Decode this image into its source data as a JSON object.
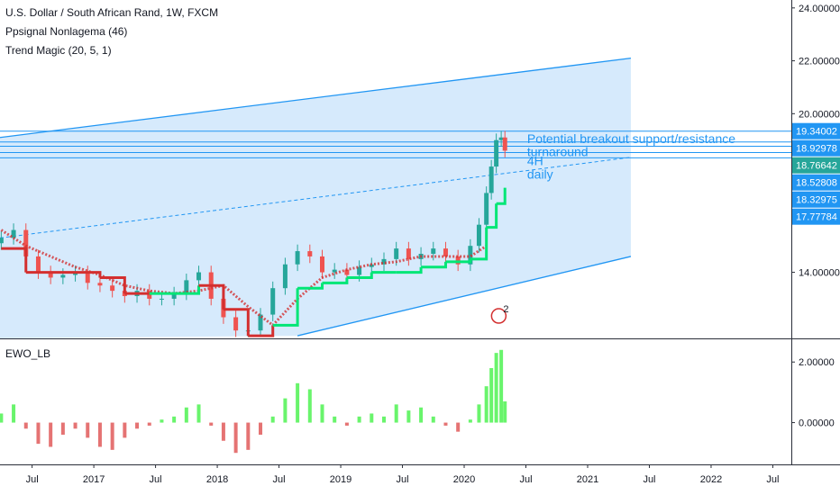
{
  "header": {
    "symbol_line": "U.S. Dollar / South African Rand, 1W, FXCM",
    "indicator1": "Ppsignal Nonlagema (46)",
    "indicator2": "Trend Magic (20, 5, 1)"
  },
  "lower_pane": {
    "title": "EWO_LB"
  },
  "colors": {
    "accent": "#2196f3",
    "channel_fill": "#cfe6fb",
    "up": "#26a69a",
    "down": "#ef5350",
    "trend_up": "#00e676",
    "trend_down": "#d32f2f",
    "ewo_up": "#69f46c",
    "ewo_down": "#e57373"
  },
  "chart_data": [
    {
      "type": "line",
      "description_type": "candlestick",
      "price_axis": {
        "ticks": [
          {
            "value": 24,
            "label": "24.00000"
          },
          {
            "value": 22,
            "label": "22.00000"
          },
          {
            "value": 20,
            "label": "20.00000"
          },
          {
            "value": 14,
            "label": "14.00000"
          }
        ],
        "badges": [
          {
            "label": "19.34002",
            "value": 19.34,
            "color": "#2196f3"
          },
          {
            "label": "18.92978",
            "value": 18.93,
            "color": "#2196f3"
          },
          {
            "label": "18.76642",
            "value": 18.766,
            "color": "#26a69a"
          },
          {
            "label": "18.52808",
            "value": 18.528,
            "color": "#2196f3"
          },
          {
            "label": "18.32975",
            "value": 18.33,
            "color": "#2196f3"
          },
          {
            "label": "17.77784",
            "value": 17.778,
            "color": "#2196f3"
          }
        ],
        "ylim": [
          11.5,
          24.3
        ]
      },
      "time_axis": {
        "labels": [
          "Jul",
          "2017",
          "Jul",
          "2018",
          "Jul",
          "2019",
          "Jul",
          "2020",
          "Jul",
          "2021",
          "Jul",
          "2022",
          "Jul"
        ],
        "positions_years": [
          2016.5,
          2017.0,
          2017.5,
          2018.0,
          2018.5,
          2019.0,
          2019.5,
          2020.0,
          2020.5,
          2021.0,
          2021.5,
          2022.0,
          2022.5
        ],
        "xlim": [
          2016.24,
          2022.65
        ]
      },
      "price_series": {
        "x": [
          2016.25,
          2016.35,
          2016.45,
          2016.55,
          2016.65,
          2016.75,
          2016.85,
          2016.95,
          2017.05,
          2017.15,
          2017.25,
          2017.35,
          2017.45,
          2017.55,
          2017.65,
          2017.75,
          2017.85,
          2017.95,
          2018.05,
          2018.15,
          2018.25,
          2018.35,
          2018.45,
          2018.55,
          2018.65,
          2018.75,
          2018.85,
          2018.95,
          2019.05,
          2019.15,
          2019.25,
          2019.35,
          2019.45,
          2019.55,
          2019.65,
          2019.75,
          2019.85,
          2019.95,
          2020.05,
          2020.12,
          2020.18,
          2020.22,
          2020.26,
          2020.3,
          2020.33
        ],
        "close": [
          15.3,
          15.6,
          14.6,
          14.0,
          13.8,
          13.9,
          14.0,
          13.6,
          13.5,
          13.3,
          13.1,
          13.3,
          13.0,
          13.0,
          13.2,
          13.7,
          14.0,
          13.0,
          12.3,
          11.8,
          11.8,
          12.4,
          13.4,
          14.3,
          14.8,
          14.6,
          14.0,
          14.1,
          13.9,
          14.2,
          14.3,
          14.5,
          14.9,
          14.5,
          14.7,
          14.9,
          14.6,
          14.3,
          15.0,
          15.8,
          17.0,
          18.0,
          19.0,
          19.1,
          18.6
        ]
      },
      "trend_magic": {
        "x": [
          2016.25,
          2016.45,
          2016.65,
          2016.85,
          2017.05,
          2017.25,
          2017.45,
          2017.65,
          2017.85,
          2018.05,
          2018.25,
          2018.45,
          2018.65,
          2018.85,
          2019.05,
          2019.25,
          2019.45,
          2019.65,
          2019.85,
          2020.05,
          2020.18,
          2020.26,
          2020.33
        ],
        "value": [
          14.9,
          14.0,
          14.0,
          14.0,
          13.8,
          13.2,
          13.2,
          13.2,
          13.5,
          12.6,
          11.6,
          12.0,
          13.4,
          13.6,
          13.8,
          14.0,
          14.0,
          14.2,
          14.4,
          14.5,
          15.7,
          16.6,
          17.2
        ],
        "trend": [
          "down",
          "down",
          "down",
          "down",
          "down",
          "down",
          "up",
          "up",
          "down",
          "down",
          "down",
          "up",
          "up",
          "up",
          "up",
          "up",
          "up",
          "up",
          "up",
          "up",
          "up",
          "up",
          "up"
        ]
      },
      "nonlag_ema": {
        "x": [
          2016.25,
          2016.45,
          2016.65,
          2016.85,
          2017.05,
          2017.25,
          2017.45,
          2017.65,
          2017.85,
          2018.05,
          2018.25,
          2018.45,
          2018.65,
          2018.85,
          2019.05,
          2019.25,
          2019.45,
          2019.65,
          2019.85,
          2020.05,
          2020.18
        ],
        "value": [
          15.6,
          15.0,
          14.6,
          14.2,
          13.9,
          13.5,
          13.3,
          13.2,
          13.3,
          13.5,
          12.7,
          12.0,
          13.0,
          13.8,
          14.1,
          14.3,
          14.4,
          14.6,
          14.6,
          14.6,
          15.0
        ]
      },
      "channel": {
        "upper": {
          "x": [
            2016.24,
            2021.35
          ],
          "y": [
            19.1,
            22.1
          ]
        },
        "lower": {
          "x": [
            2018.65,
            2021.35
          ],
          "y": [
            11.6,
            14.6
          ]
        },
        "mid": {
          "x": [
            2016.24,
            2021.35
          ],
          "y": [
            15.3,
            18.35
          ]
        }
      },
      "horizontal_levels": [
        19.34,
        18.93,
        18.766,
        18.528,
        18.33
      ],
      "annotations": [
        {
          "text": "Potential breakout support/resistance",
          "x": 2020.51,
          "y": 18.89
        },
        {
          "text": "turnaround",
          "x": 2020.51,
          "y": 18.4
        },
        {
          "text": "4H",
          "x": 2020.51,
          "y": 18.05
        },
        {
          "text": "daily",
          "x": 2020.51,
          "y": 17.55
        }
      ],
      "event_badge": {
        "text": "2",
        "x": 2020.28,
        "y": 12.35
      }
    },
    {
      "type": "bar",
      "name": "EWO_LB",
      "yticks": [
        {
          "value": 2,
          "label": "2.00000"
        },
        {
          "value": 0,
          "label": "0.00000"
        }
      ],
      "ylim": [
        -1.35,
        2.75
      ],
      "x": [
        2016.25,
        2016.35,
        2016.45,
        2016.55,
        2016.65,
        2016.75,
        2016.85,
        2016.95,
        2017.05,
        2017.15,
        2017.25,
        2017.35,
        2017.45,
        2017.55,
        2017.65,
        2017.75,
        2017.85,
        2017.95,
        2018.05,
        2018.15,
        2018.25,
        2018.35,
        2018.45,
        2018.55,
        2018.65,
        2018.75,
        2018.85,
        2018.95,
        2019.05,
        2019.15,
        2019.25,
        2019.35,
        2019.45,
        2019.55,
        2019.65,
        2019.75,
        2019.85,
        2019.95,
        2020.05,
        2020.12,
        2020.18,
        2020.22,
        2020.26,
        2020.3,
        2020.33
      ],
      "values": [
        0.3,
        0.6,
        -0.2,
        -0.7,
        -0.8,
        -0.4,
        -0.2,
        -0.5,
        -0.8,
        -0.9,
        -0.5,
        -0.2,
        -0.1,
        0.1,
        0.2,
        0.5,
        0.6,
        -0.1,
        -0.6,
        -1.0,
        -0.9,
        -0.4,
        0.2,
        0.8,
        1.3,
        1.1,
        0.6,
        0.2,
        -0.1,
        0.2,
        0.3,
        0.2,
        0.6,
        0.4,
        0.5,
        0.2,
        -0.1,
        -0.3,
        0.1,
        0.6,
        1.2,
        1.8,
        2.3,
        2.4,
        0.7
      ]
    }
  ]
}
